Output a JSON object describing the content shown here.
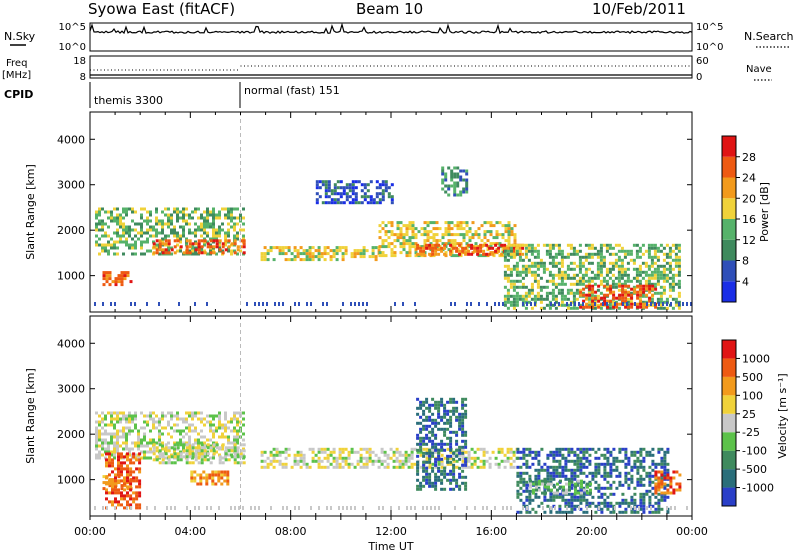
{
  "header": {
    "station": "Syowa East (fitACF)",
    "beam": "Beam 10",
    "date": "10/Feb/2011"
  },
  "top_panels": {
    "nsky_label": "N.Sky",
    "nsky_ticks": [
      "10^5",
      "10^0"
    ],
    "nsearch_label": "N.Search",
    "nsearch_ticks": [
      "10^5",
      "10^0"
    ],
    "freq_label_1": "Freq",
    "freq_label_2": "[MHz]",
    "freq_ticks": [
      "18",
      "8"
    ],
    "nave_label": "Nave",
    "nave_ticks": [
      "60",
      "0"
    ],
    "cpid_label": "CPID",
    "cpid_segments": [
      {
        "start_hour": 0,
        "label": "themis 3300"
      },
      {
        "start_hour": 6,
        "label": "normal (fast) 151"
      }
    ]
  },
  "chart_data": [
    {
      "type": "heatmap",
      "name": "power",
      "ylabel": "Slant Range [km]",
      "ylim": [
        200,
        4600
      ],
      "yticks": [
        1000,
        2000,
        3000,
        4000
      ],
      "xlim": [
        0,
        24
      ],
      "colorbar": {
        "label": "Power [dB]",
        "ticks": [
          "4",
          "8",
          "12",
          "16",
          "20",
          "24",
          "28"
        ],
        "colors": [
          "#1a2ee6",
          "#2f4fb8",
          "#3f8a5e",
          "#56b26a",
          "#f0d23a",
          "#f29a1c",
          "#ee5a12",
          "#e01414"
        ]
      },
      "echo_regions": [
        {
          "t0": 0.2,
          "t1": 6.1,
          "r0": 1450,
          "r1": 2500,
          "level": 3
        },
        {
          "t0": 0.5,
          "t1": 1.6,
          "r0": 800,
          "r1": 1100,
          "level": 6
        },
        {
          "t0": 2.5,
          "t1": 6.2,
          "r0": 1500,
          "r1": 1800,
          "level": 6
        },
        {
          "t0": 6.8,
          "t1": 11.5,
          "r0": 1350,
          "r1": 1650,
          "level": 4
        },
        {
          "t0": 11.5,
          "t1": 17.0,
          "r0": 1450,
          "r1": 2200,
          "level": 4
        },
        {
          "t0": 13.0,
          "t1": 17.3,
          "r0": 1500,
          "r1": 1700,
          "level": 6
        },
        {
          "t0": 16.5,
          "t1": 23.5,
          "r0": 300,
          "r1": 1700,
          "level": 3
        },
        {
          "t0": 19.5,
          "t1": 22.5,
          "r0": 300,
          "r1": 800,
          "level": 6
        },
        {
          "t0": 14.0,
          "t1": 15.0,
          "r0": 2800,
          "r1": 3400,
          "level": 2
        },
        {
          "t0": 9.0,
          "t1": 12.0,
          "r0": 2600,
          "r1": 3100,
          "level": 1
        }
      ]
    },
    {
      "type": "heatmap",
      "name": "velocity",
      "ylabel": "Slant Range [km]",
      "ylim": [
        200,
        4600
      ],
      "yticks": [
        1000,
        2000,
        3000,
        4000
      ],
      "xlim": [
        0,
        24
      ],
      "colorbar": {
        "label": "Velocity [m s⁻¹]",
        "ticks": [
          "1000",
          "500",
          "100",
          "25",
          "-25",
          "-100",
          "-500",
          "-1000"
        ],
        "colors": [
          "#2a3fc8",
          "#2a6e7a",
          "#3f8a5e",
          "#5cc24a",
          "#c8c8c8",
          "#f0d23a",
          "#f29a1c",
          "#ee5a12",
          "#e01414"
        ]
      },
      "echo_regions": [
        {
          "t0": 0.2,
          "t1": 6.1,
          "r0": 1450,
          "r1": 2500,
          "level": 4
        },
        {
          "t0": 0.5,
          "t1": 1.6,
          "r0": 800,
          "r1": 1100,
          "level": 6
        },
        {
          "t0": 2.5,
          "t1": 6.2,
          "r0": 1350,
          "r1": 1800,
          "level": 4
        },
        {
          "t0": 4.0,
          "t1": 5.5,
          "r0": 900,
          "r1": 1200,
          "level": 6
        },
        {
          "t0": 6.8,
          "t1": 17.0,
          "r0": 1300,
          "r1": 1700,
          "level": 4
        },
        {
          "t0": 13.0,
          "t1": 15.0,
          "r0": 800,
          "r1": 2800,
          "level": 1
        },
        {
          "t0": 17.0,
          "t1": 23.0,
          "r0": 300,
          "r1": 1700,
          "level": 1
        },
        {
          "t0": 17.5,
          "t1": 20.0,
          "r0": 700,
          "r1": 1000,
          "level": 3
        },
        {
          "t0": 0.6,
          "t1": 2.0,
          "r0": 400,
          "r1": 1600,
          "level": 7
        },
        {
          "t0": 22.5,
          "t1": 23.5,
          "r0": 700,
          "r1": 1200,
          "level": 7
        }
      ]
    }
  ],
  "x_axis": {
    "label": "Time UT",
    "ticks": [
      "00:00",
      "04:00",
      "08:00",
      "12:00",
      "16:00",
      "20:00",
      "00:00"
    ]
  }
}
